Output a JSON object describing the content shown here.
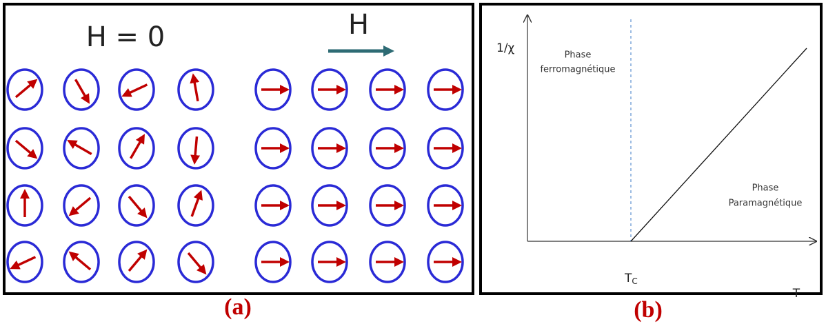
{
  "panel_a": {
    "label": "(a)",
    "zero_field_label": "H = 0",
    "field_label": "H"
  },
  "panel_b": {
    "label": "(b)",
    "y_axis_label": "1/χ",
    "x_axis_label": "T",
    "critical_temperature": {
      "symbol": "T",
      "subscript": "C"
    },
    "ferromagnetic_region": [
      "Phase",
      "ferromagnétique"
    ],
    "paramagnetic_region": [
      "Phase",
      "Paramagnétique"
    ]
  }
}
